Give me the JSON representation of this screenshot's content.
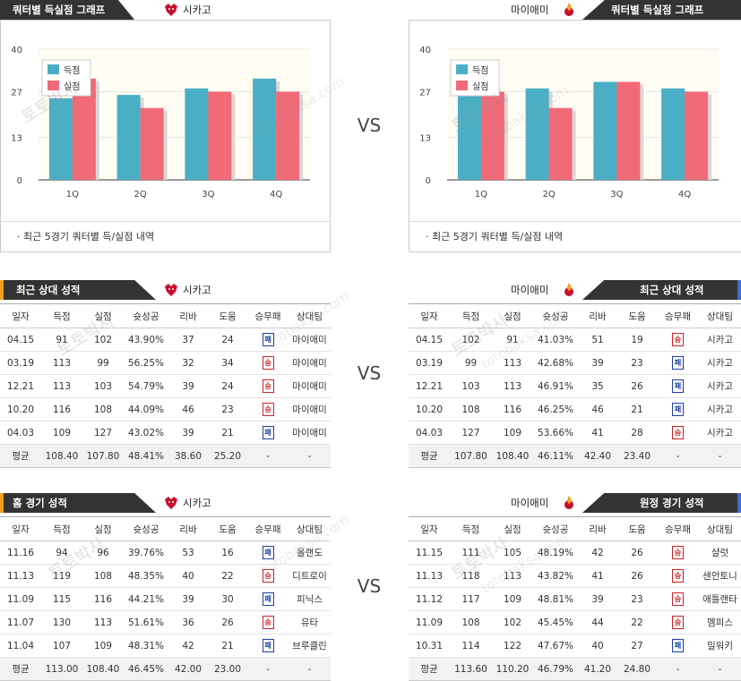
{
  "vs_label": "VS",
  "watermark": {
    "line1": "토토박사",
    "line2": "totobaksa.com"
  },
  "left_team": "시카고",
  "right_team": "마이애미",
  "chart_left": {
    "header": "쿼터별 득실점 그래프",
    "footnote": "· 최근 5경기 쿼터별 득/실점 내역",
    "chart_data": {
      "type": "bar",
      "categories": [
        "1Q",
        "2Q",
        "3Q",
        "4Q"
      ],
      "series": [
        {
          "name": "득점",
          "color": "#4aafc4",
          "values": [
            25,
            26,
            28,
            31
          ]
        },
        {
          "name": "실점",
          "color": "#f16a78",
          "values": [
            31,
            22,
            27,
            27
          ]
        }
      ],
      "yticks": [
        "0",
        "13",
        "27",
        "40"
      ],
      "ylim": [
        0,
        40
      ],
      "legend": "top-left"
    }
  },
  "chart_right": {
    "header": "쿼터별 득실점 그래프",
    "footnote": "· 최근 5경기 쿼터별 득/실점 내역",
    "chart_data": {
      "type": "bar",
      "categories": [
        "1Q",
        "2Q",
        "3Q",
        "4Q"
      ],
      "series": [
        {
          "name": "득점",
          "color": "#4aafc4",
          "values": [
            28,
            28,
            30,
            28
          ]
        },
        {
          "name": "실점",
          "color": "#f16a78",
          "values": [
            27,
            22,
            30,
            27
          ]
        }
      ],
      "yticks": [
        "0",
        "13",
        "27",
        "40"
      ],
      "ylim": [
        0,
        40
      ],
      "legend": "top-left"
    }
  },
  "columns": [
    "일자",
    "득점",
    "실점",
    "슛성공",
    "리바",
    "도움",
    "승무패",
    "상대팀"
  ],
  "h2h_left": {
    "header": "최근 상대 성적",
    "rows": [
      [
        "04.15",
        "91",
        "102",
        "43.90%",
        "37",
        "24",
        "패",
        "마이애미"
      ],
      [
        "03.19",
        "113",
        "99",
        "56.25%",
        "32",
        "34",
        "승",
        "마이애미"
      ],
      [
        "12.21",
        "113",
        "103",
        "54.79%",
        "39",
        "24",
        "승",
        "마이애미"
      ],
      [
        "10.20",
        "116",
        "108",
        "44.09%",
        "46",
        "23",
        "승",
        "마이애미"
      ],
      [
        "04.03",
        "109",
        "127",
        "43.02%",
        "39",
        "21",
        "패",
        "마이애미"
      ]
    ],
    "avg": [
      "평균",
      "108.40",
      "107.80",
      "48.41%",
      "38.60",
      "25.20",
      "-",
      "-"
    ]
  },
  "h2h_right": {
    "header": "최근 상대 성적",
    "rows": [
      [
        "04.15",
        "102",
        "91",
        "41.03%",
        "51",
        "19",
        "승",
        "시카고"
      ],
      [
        "03.19",
        "99",
        "113",
        "42.68%",
        "39",
        "23",
        "패",
        "시카고"
      ],
      [
        "12.21",
        "103",
        "113",
        "46.91%",
        "35",
        "26",
        "패",
        "시카고"
      ],
      [
        "10.20",
        "108",
        "116",
        "46.25%",
        "46",
        "21",
        "패",
        "시카고"
      ],
      [
        "04.03",
        "127",
        "109",
        "53.66%",
        "41",
        "28",
        "승",
        "시카고"
      ]
    ],
    "avg": [
      "평균",
      "107.80",
      "108.40",
      "46.11%",
      "42.40",
      "23.40",
      "-",
      "-"
    ]
  },
  "home_left": {
    "header": "홈 경기 성적",
    "rows": [
      [
        "11.16",
        "94",
        "96",
        "39.76%",
        "53",
        "16",
        "패",
        "올랜도"
      ],
      [
        "11.13",
        "119",
        "108",
        "48.35%",
        "40",
        "22",
        "승",
        "디트로이"
      ],
      [
        "11.09",
        "115",
        "116",
        "44.21%",
        "39",
        "30",
        "패",
        "피닉스"
      ],
      [
        "11.07",
        "130",
        "113",
        "51.61%",
        "36",
        "26",
        "승",
        "유타"
      ],
      [
        "11.04",
        "107",
        "109",
        "48.31%",
        "42",
        "21",
        "패",
        "브루클린"
      ]
    ],
    "avg": [
      "평균",
      "113.00",
      "108.40",
      "46.45%",
      "42.00",
      "23.00",
      "-",
      "-"
    ]
  },
  "away_right": {
    "header": "원정 경기 성적",
    "rows": [
      [
        "11.15",
        "111",
        "105",
        "48.19%",
        "42",
        "26",
        "승",
        "샬럿"
      ],
      [
        "11.13",
        "118",
        "113",
        "43.82%",
        "41",
        "26",
        "승",
        "샌안토니"
      ],
      [
        "11.12",
        "117",
        "109",
        "48.81%",
        "39",
        "23",
        "승",
        "애틀랜타"
      ],
      [
        "11.09",
        "108",
        "102",
        "45.45%",
        "44",
        "22",
        "승",
        "멤피스"
      ],
      [
        "10.31",
        "114",
        "122",
        "47.67%",
        "40",
        "27",
        "패",
        "밀워키"
      ]
    ],
    "avg": [
      "평균",
      "113.60",
      "110.20",
      "46.79%",
      "41.20",
      "24.80",
      "-",
      "-"
    ]
  }
}
